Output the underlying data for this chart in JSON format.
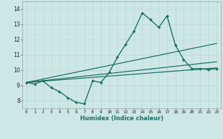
{
  "title": "",
  "xlabel": "Humidex (Indice chaleur)",
  "ylabel": "",
  "bg_color": "#cde8e4",
  "line_color": "#1a6e62",
  "grid_color": "#b8d8d4",
  "xlim": [
    -0.5,
    23.5
  ],
  "ylim": [
    7.5,
    14.5
  ],
  "xticks": [
    0,
    1,
    2,
    3,
    4,
    5,
    6,
    7,
    8,
    9,
    10,
    11,
    12,
    13,
    14,
    15,
    16,
    17,
    18,
    19,
    20,
    21,
    22,
    23
  ],
  "yticks": [
    8,
    9,
    10,
    11,
    12,
    13,
    14
  ],
  "main_series": {
    "x": [
      0,
      1,
      2,
      3,
      4,
      5,
      6,
      7,
      8,
      9,
      10,
      11,
      12,
      13,
      14,
      15,
      16,
      17,
      18,
      19,
      20,
      21,
      22,
      23
    ],
    "y": [
      9.2,
      9.1,
      9.3,
      8.85,
      8.6,
      8.2,
      7.9,
      7.8,
      9.3,
      9.2,
      9.85,
      10.85,
      11.7,
      12.55,
      13.75,
      13.3,
      12.8,
      13.55,
      11.65,
      10.7,
      10.1,
      10.1,
      10.05,
      10.1
    ],
    "marker": "D",
    "markersize": 2.0,
    "linewidth": 1.0
  },
  "trend_lines": [
    {
      "x": [
        0,
        23
      ],
      "y": [
        9.2,
        11.75
      ],
      "linewidth": 0.9
    },
    {
      "x": [
        0,
        23
      ],
      "y": [
        9.2,
        10.55
      ],
      "linewidth": 0.9
    },
    {
      "x": [
        0,
        23
      ],
      "y": [
        9.2,
        10.15
      ],
      "linewidth": 0.9
    }
  ]
}
